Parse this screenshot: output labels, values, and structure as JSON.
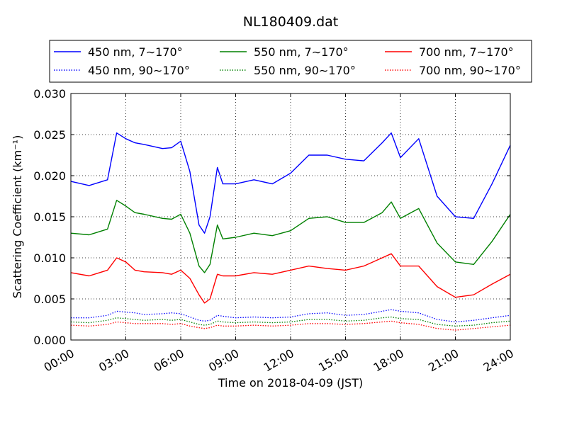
{
  "chart_data": {
    "type": "line",
    "title": "NL180409.dat",
    "xlabel": "Time on 2018-04-09 (JST)",
    "ylabel": "Scattering Coefficient (km⁻¹)",
    "xlim": [
      "00:00",
      "24:00"
    ],
    "ylim": [
      0,
      0.03
    ],
    "x_ticks": [
      "00:00",
      "03:00",
      "06:00",
      "09:00",
      "12:00",
      "15:00",
      "18:00",
      "21:00",
      "24:00"
    ],
    "y_ticks": [
      "0.000",
      "0.005",
      "0.010",
      "0.015",
      "0.020",
      "0.025",
      "0.030"
    ],
    "grid": true,
    "legend_position": "top",
    "x_hours": [
      0,
      1,
      2,
      2.5,
      3,
      3.5,
      4,
      5,
      5.5,
      6,
      6.5,
      7,
      7.3,
      7.6,
      8,
      8.3,
      9,
      10,
      11,
      12,
      13,
      14,
      15,
      16,
      17,
      17.5,
      18,
      19,
      20,
      21,
      22,
      23,
      24
    ],
    "series": [
      {
        "name": "450 nm, 7∼170°",
        "color": "#0000ff",
        "style": "solid",
        "values": [
          0.0193,
          0.0188,
          0.0195,
          0.0252,
          0.0245,
          0.024,
          0.0238,
          0.0233,
          0.0234,
          0.0242,
          0.0205,
          0.014,
          0.013,
          0.015,
          0.021,
          0.019,
          0.019,
          0.0195,
          0.019,
          0.0203,
          0.0225,
          0.0225,
          0.022,
          0.0218,
          0.024,
          0.0252,
          0.0222,
          0.0245,
          0.0175,
          0.015,
          0.0148,
          0.019,
          0.0237
        ]
      },
      {
        "name": "450 nm, 90∼170°",
        "color": "#0000ff",
        "style": "dotted",
        "values": [
          0.0027,
          0.0027,
          0.003,
          0.0035,
          0.0034,
          0.0033,
          0.0031,
          0.0032,
          0.0033,
          0.0032,
          0.0028,
          0.0024,
          0.0023,
          0.0024,
          0.003,
          0.0029,
          0.0027,
          0.0028,
          0.0027,
          0.0028,
          0.0032,
          0.0033,
          0.003,
          0.0031,
          0.0035,
          0.0037,
          0.0035,
          0.0033,
          0.0025,
          0.0022,
          0.0024,
          0.0027,
          0.003
        ]
      },
      {
        "name": "550 nm, 7∼170°",
        "color": "#008000",
        "style": "solid",
        "values": [
          0.013,
          0.0128,
          0.0135,
          0.017,
          0.0163,
          0.0155,
          0.0153,
          0.0148,
          0.0147,
          0.0153,
          0.013,
          0.009,
          0.0082,
          0.0092,
          0.014,
          0.0123,
          0.0125,
          0.013,
          0.0127,
          0.0133,
          0.0148,
          0.015,
          0.0143,
          0.0143,
          0.0155,
          0.0168,
          0.0148,
          0.016,
          0.0118,
          0.0095,
          0.0092,
          0.012,
          0.0153
        ]
      },
      {
        "name": "550 nm, 90∼170°",
        "color": "#008000",
        "style": "dotted",
        "values": [
          0.0022,
          0.0021,
          0.0024,
          0.0027,
          0.0026,
          0.0025,
          0.0024,
          0.0025,
          0.0024,
          0.0025,
          0.0022,
          0.0019,
          0.0018,
          0.0019,
          0.0023,
          0.0022,
          0.0021,
          0.0022,
          0.0021,
          0.0022,
          0.0025,
          0.0025,
          0.0023,
          0.0024,
          0.0027,
          0.0028,
          0.0026,
          0.0025,
          0.0019,
          0.0017,
          0.0018,
          0.0021,
          0.0023
        ]
      },
      {
        "name": "700 nm, 7∼170°",
        "color": "#ff0000",
        "style": "solid",
        "values": [
          0.0082,
          0.0078,
          0.0085,
          0.01,
          0.0095,
          0.0085,
          0.0083,
          0.0082,
          0.008,
          0.0085,
          0.0075,
          0.0055,
          0.0045,
          0.005,
          0.008,
          0.0078,
          0.0078,
          0.0082,
          0.008,
          0.0085,
          0.009,
          0.0087,
          0.0085,
          0.009,
          0.01,
          0.0105,
          0.009,
          0.009,
          0.0065,
          0.0052,
          0.0055,
          0.0068,
          0.008
        ]
      },
      {
        "name": "700 nm, 90∼170°",
        "color": "#ff0000",
        "style": "dotted",
        "values": [
          0.0018,
          0.0017,
          0.0019,
          0.0022,
          0.0021,
          0.002,
          0.002,
          0.002,
          0.0019,
          0.002,
          0.0017,
          0.0015,
          0.0014,
          0.0015,
          0.0018,
          0.0017,
          0.0017,
          0.0018,
          0.0017,
          0.0018,
          0.002,
          0.002,
          0.0019,
          0.002,
          0.0022,
          0.0023,
          0.0021,
          0.0019,
          0.0014,
          0.0012,
          0.0014,
          0.0016,
          0.0018
        ]
      }
    ]
  }
}
